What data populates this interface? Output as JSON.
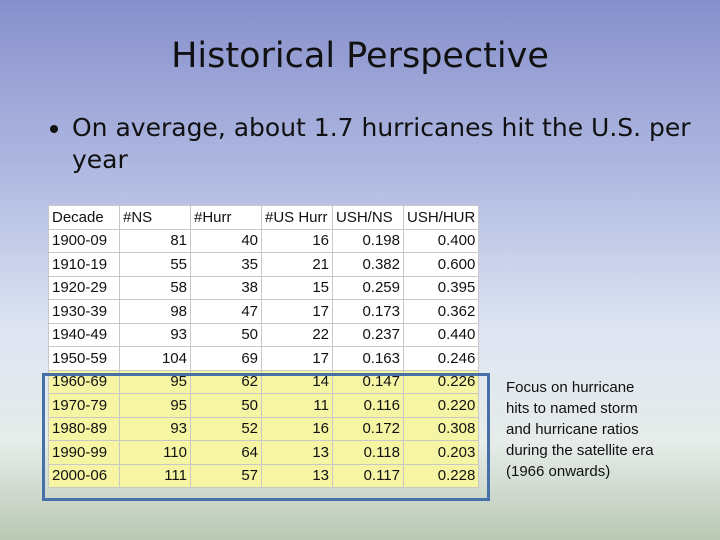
{
  "title": "Historical Perspective",
  "bullet": "On average, about 1.7 hurricanes hit the U.S. per year",
  "table": {
    "header": [
      "Decade",
      "#NS",
      "#Hurr",
      "#US Hurr",
      "USH/NS",
      "USH/HUR"
    ],
    "rows": [
      [
        "1900-09",
        "81",
        "40",
        "16",
        "0.198",
        "0.400"
      ],
      [
        "1910-19",
        "55",
        "35",
        "21",
        "0.382",
        "0.600"
      ],
      [
        "1920-29",
        "58",
        "38",
        "15",
        "0.259",
        "0.395"
      ],
      [
        "1930-39",
        "98",
        "47",
        "17",
        "0.173",
        "0.362"
      ],
      [
        "1940-49",
        "93",
        "50",
        "22",
        "0.237",
        "0.440"
      ],
      [
        "1950-59",
        "104",
        "69",
        "17",
        "0.163",
        "0.246"
      ],
      [
        "1960-69",
        "95",
        "62",
        "14",
        "0.147",
        "0.226"
      ],
      [
        "1970-79",
        "95",
        "50",
        "11",
        "0.116",
        "0.220"
      ],
      [
        "1980-89",
        "93",
        "52",
        "16",
        "0.172",
        "0.308"
      ],
      [
        "1990-99",
        "110",
        "64",
        "13",
        "0.118",
        "0.203"
      ],
      [
        "2000-06",
        "111",
        "57",
        "13",
        "0.117",
        "0.228"
      ]
    ]
  },
  "note": [
    "Focus on hurricane",
    "hits to named storm",
    "and hurricane ratios",
    "during the satellite era",
    "(1966 onwards)"
  ]
}
